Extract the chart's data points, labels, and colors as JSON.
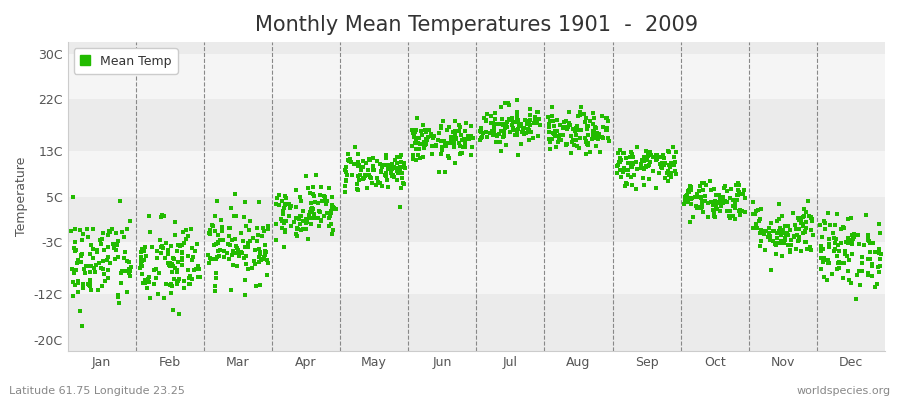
{
  "title": "Monthly Mean Temperatures 1901  -  2009",
  "ylabel": "Temperature",
  "ytick_labels": [
    "-20C",
    "-12C",
    "-3C",
    "5C",
    "13C",
    "22C",
    "30C"
  ],
  "ytick_values": [
    -20,
    -12,
    -3,
    5,
    13,
    22,
    30
  ],
  "ylim": [
    -22,
    32
  ],
  "months": [
    "Jan",
    "Feb",
    "Mar",
    "Apr",
    "May",
    "Jun",
    "Jul",
    "Aug",
    "Sep",
    "Oct",
    "Nov",
    "Dec"
  ],
  "dot_color": "#22BB00",
  "dot_size": 6,
  "figure_bg": "#ffffff",
  "plot_bg": "#ffffff",
  "band_colors": [
    "#ebebeb",
    "#f5f5f5"
  ],
  "title_fontsize": 15,
  "axis_label_fontsize": 9,
  "tick_label_fontsize": 9,
  "footer_left": "Latitude 61.75 Longitude 23.25",
  "footer_right": "worldspecies.org",
  "n_years": 109,
  "monthly_means": [
    -6.5,
    -7.0,
    -3.5,
    2.5,
    9.5,
    14.5,
    17.5,
    16.0,
    10.5,
    4.5,
    -1.0,
    -4.5
  ],
  "monthly_stds": [
    4.2,
    4.0,
    3.2,
    2.4,
    1.8,
    1.8,
    1.8,
    1.8,
    1.8,
    1.8,
    2.4,
    3.2
  ],
  "seed": 42
}
